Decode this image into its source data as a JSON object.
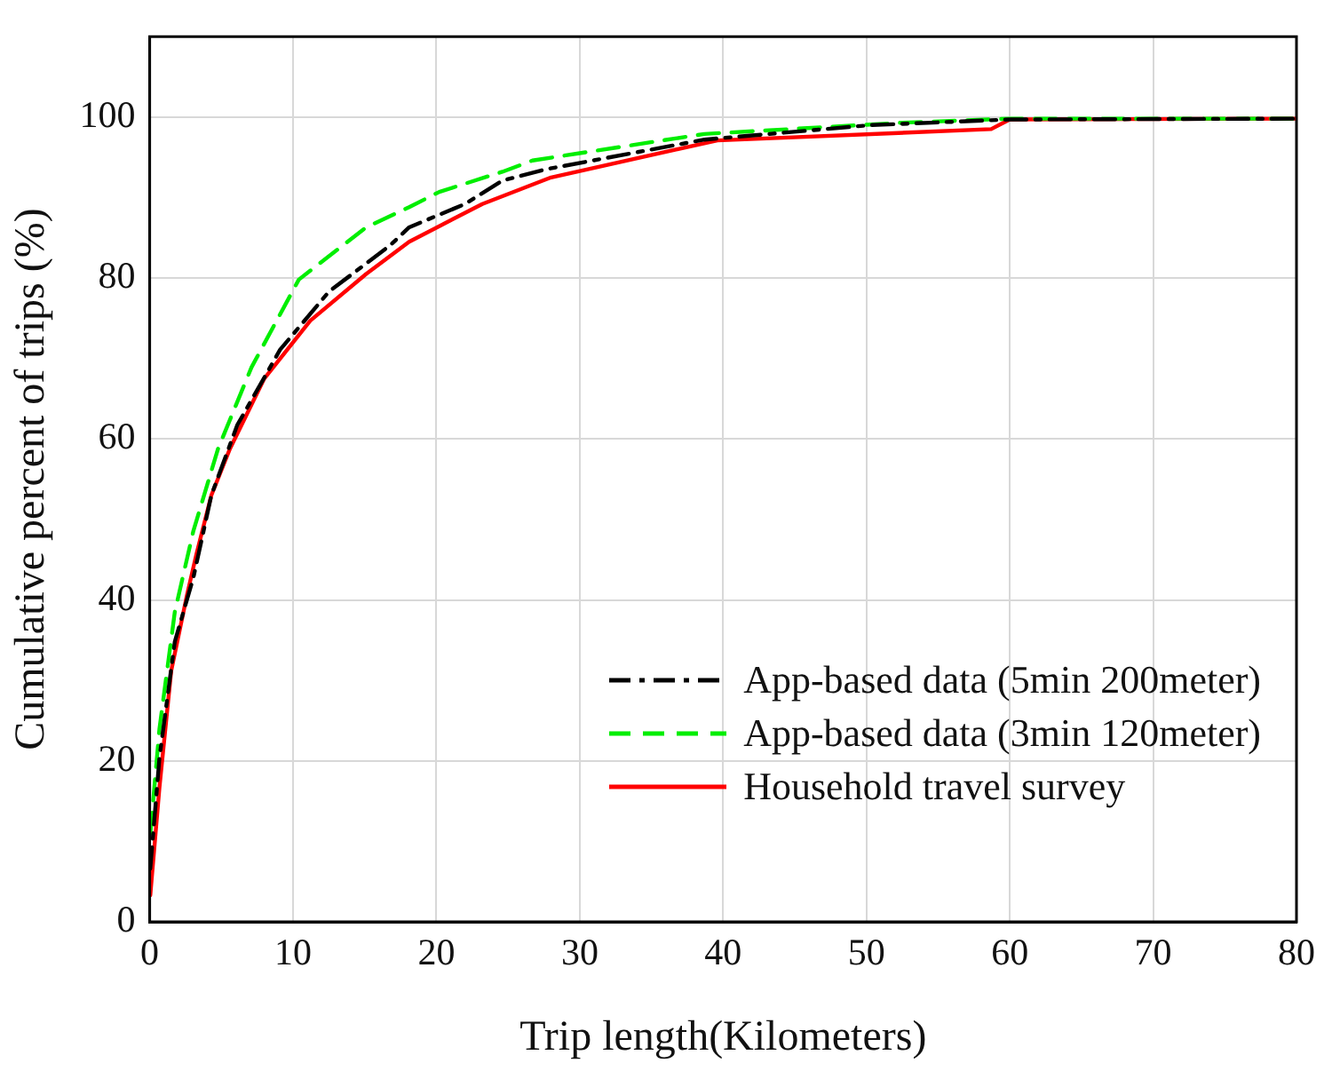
{
  "chart_data": {
    "type": "line",
    "xlabel": "Trip length(Kilometers)",
    "ylabel": "Cumulative percent of trips (%)",
    "xlim": [
      0,
      80
    ],
    "ylim": [
      0,
      110
    ],
    "xticks": [
      0,
      10,
      20,
      30,
      40,
      50,
      60,
      70,
      80
    ],
    "yticks": [
      0,
      20,
      40,
      60,
      80,
      100
    ],
    "grid": true,
    "legend": "bottom right",
    "marker": "none",
    "series": [
      {
        "name": "App-based data (5min 200meter)",
        "color": "#000000",
        "line_style": "dashdot",
        "x": [
          0.04,
          0.68,
          1.75,
          3.05,
          4.3,
          6.1,
          9.1,
          12.5,
          16.8,
          18.1,
          22,
          24.6,
          27.6,
          38.7,
          50.3,
          60,
          80
        ],
        "values": [
          6.6,
          20.4,
          34.8,
          42.8,
          53,
          61.7,
          71.1,
          78.3,
          84.1,
          86.3,
          89.2,
          92.1,
          93.5,
          97.2,
          99,
          99.7,
          99.8
        ]
      },
      {
        "name": "App-based data (3min 120meter)",
        "color": "#00ee00",
        "line_style": "dashed",
        "x": [
          0.04,
          0.68,
          1.75,
          3.05,
          4.77,
          7.1,
          10.4,
          15.1,
          18.1,
          20.2,
          24.6,
          26.7,
          38.7,
          52.5,
          60,
          80
        ],
        "values": [
          10.9,
          24,
          38.5,
          48.6,
          58.8,
          68.9,
          79.8,
          86.3,
          88.8,
          90.7,
          93.2,
          94.6,
          97.9,
          99.3,
          99.8,
          99.8
        ]
      },
      {
        "name": "Household travel survey",
        "color": "#ff0000",
        "line_style": "solid",
        "x": [
          0.04,
          0.68,
          1.5,
          2.6,
          3.26,
          4.3,
          5.6,
          7.99,
          11.2,
          15.1,
          18.1,
          23.2,
          28,
          39.6,
          58.7,
          60,
          80
        ],
        "values": [
          3.3,
          16.7,
          31.2,
          40.6,
          45.7,
          53,
          58.8,
          67.5,
          74.7,
          80.5,
          84.5,
          89.2,
          92.5,
          97.1,
          98.5,
          99.7,
          99.8
        ]
      }
    ]
  }
}
